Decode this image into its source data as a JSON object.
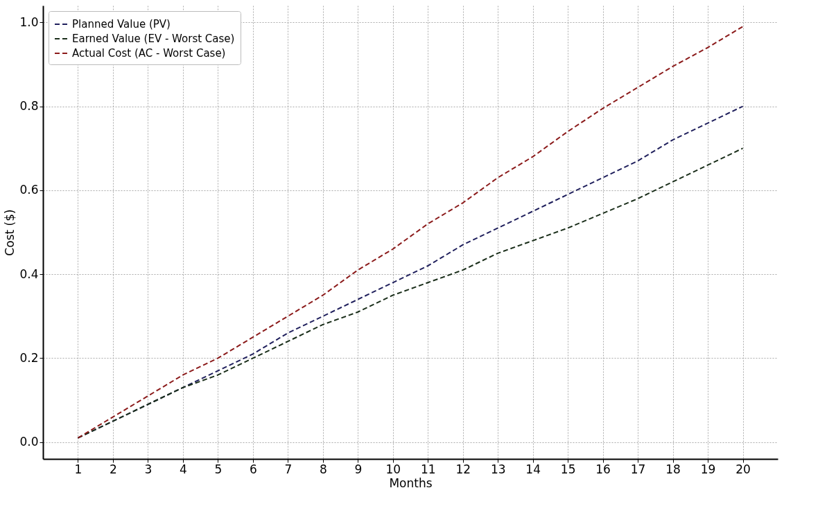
{
  "chart_data": {
    "type": "line",
    "xlabel": "Months",
    "ylabel": "Cost ($)",
    "x": [
      1,
      2,
      3,
      4,
      5,
      6,
      7,
      8,
      9,
      10,
      11,
      12,
      13,
      14,
      15,
      16,
      17,
      18,
      19,
      20
    ],
    "series": [
      {
        "name": "Planned Value (PV)",
        "color": "#1f1f5c",
        "values": [
          0.01,
          0.05,
          0.09,
          0.13,
          0.17,
          0.21,
          0.26,
          0.3,
          0.34,
          0.38,
          0.42,
          0.47,
          0.51,
          0.55,
          0.59,
          0.63,
          0.67,
          0.72,
          0.76,
          0.8
        ]
      },
      {
        "name": "Earned Value (EV - Worst Case)",
        "color": "#1a2e1a",
        "values": [
          0.01,
          0.05,
          0.09,
          0.13,
          0.16,
          0.2,
          0.24,
          0.28,
          0.31,
          0.35,
          0.38,
          0.41,
          0.45,
          0.48,
          0.51,
          0.545,
          0.58,
          0.62,
          0.66,
          0.7
        ]
      },
      {
        "name": "Actual Cost (AC - Worst Case)",
        "color": "#8b1a1a",
        "values": [
          0.01,
          0.06,
          0.11,
          0.16,
          0.2,
          0.25,
          0.3,
          0.35,
          0.41,
          0.46,
          0.52,
          0.57,
          0.63,
          0.68,
          0.74,
          0.795,
          0.845,
          0.895,
          0.94,
          0.99
        ]
      }
    ],
    "xlim": [
      0,
      21
    ],
    "xticks": [
      1,
      2,
      3,
      4,
      5,
      6,
      7,
      8,
      9,
      10,
      11,
      12,
      13,
      14,
      15,
      16,
      17,
      18,
      19,
      20
    ],
    "ylim": [
      -0.04,
      1.04
    ],
    "yticks": [
      {
        "value": 0,
        "label": "0.0"
      },
      {
        "value": 0.2,
        "label": "0.2"
      },
      {
        "value": 0.4,
        "label": "0.4"
      },
      {
        "value": 0.6,
        "label": "0.6"
      },
      {
        "value": 0.8,
        "label": "0.8"
      },
      {
        "value": 1,
        "label": "1.0"
      }
    ],
    "grid": true,
    "legend": "top left",
    "line_style": "dashed",
    "marker": "none"
  }
}
